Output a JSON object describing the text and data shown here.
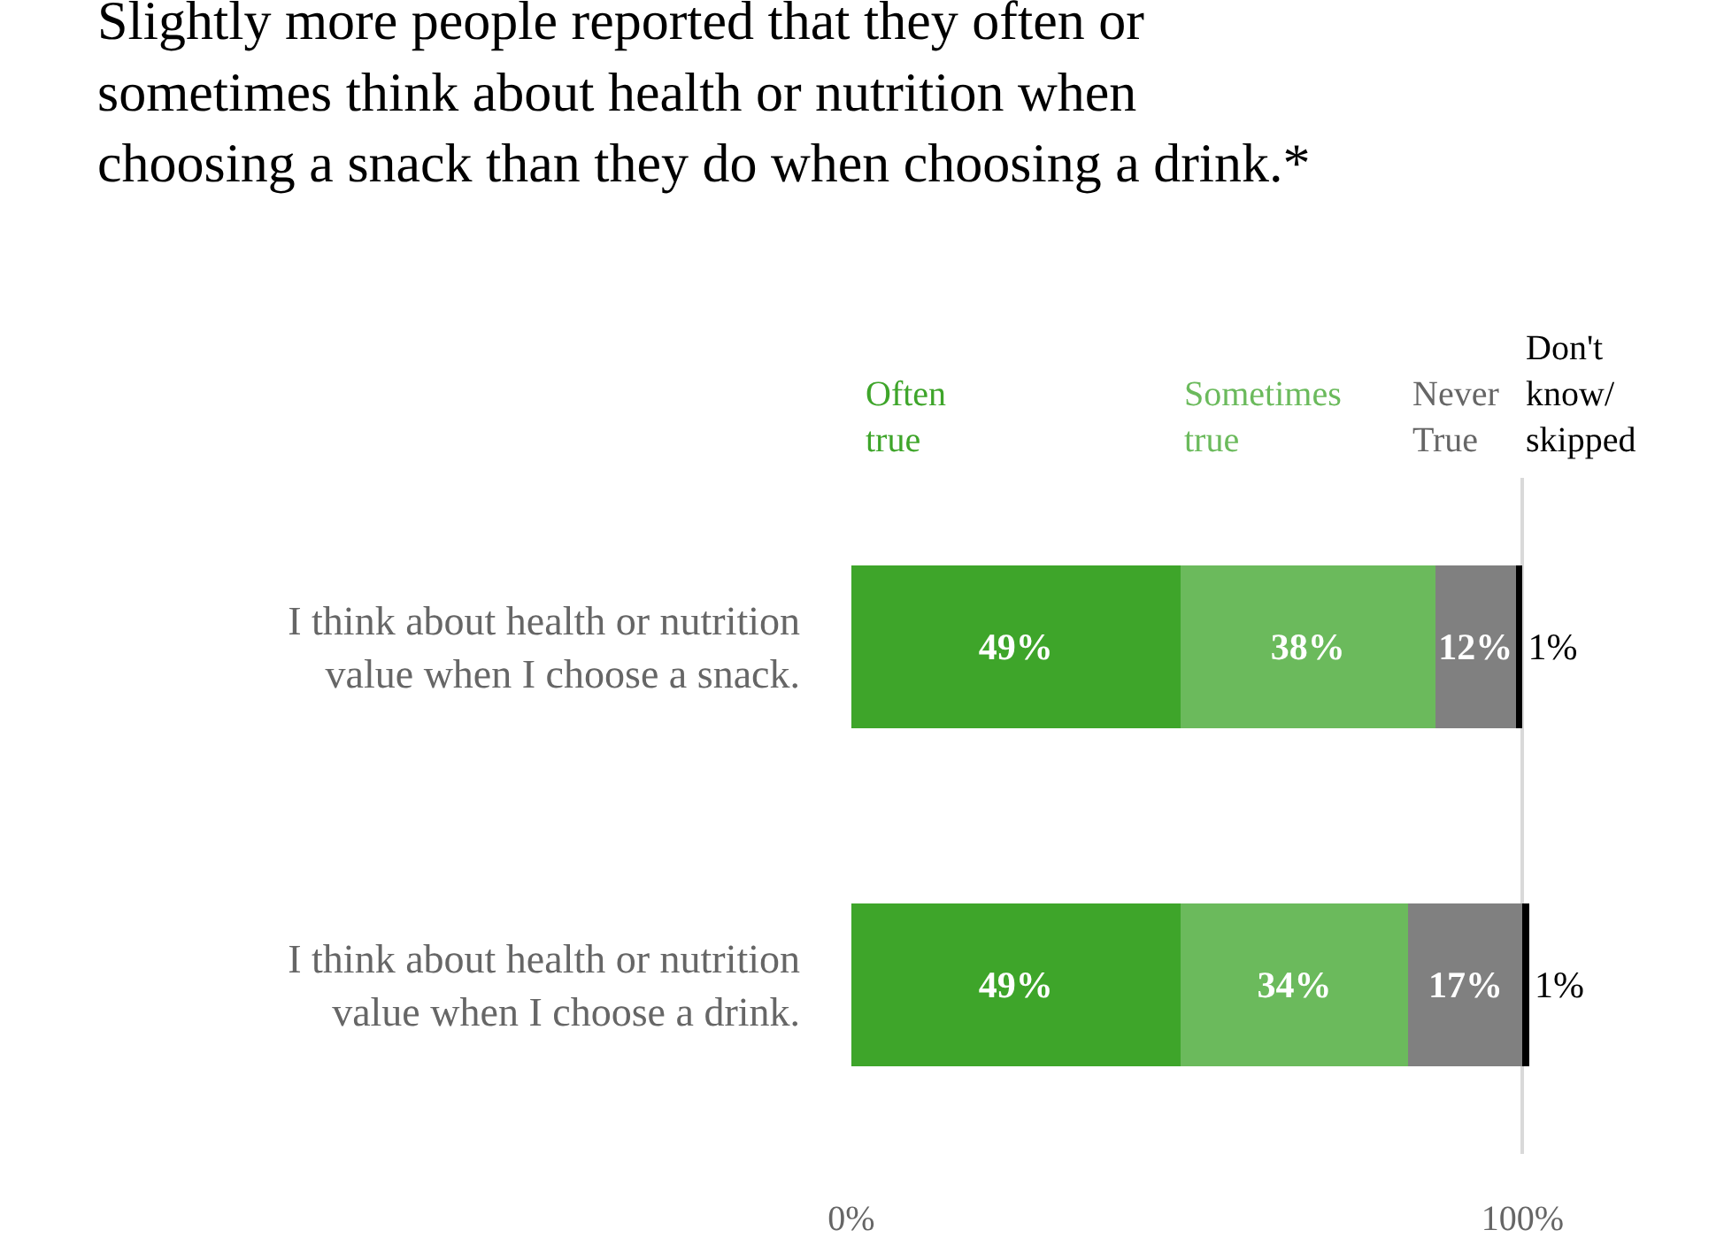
{
  "chart_data": {
    "type": "bar",
    "orientation": "horizontal",
    "stacked": true,
    "title": "Slightly more people reported that they often or sometimes think about health or nutrition when choosing a snack than they do when choosing a drink.*",
    "categories": [
      "I think about health or nutrition value when I choose a snack.",
      "I think about health or nutrition value when I choose a drink."
    ],
    "series": [
      {
        "name": "Often true",
        "color": "#3ea52a",
        "values": [
          49,
          49
        ],
        "value_labels": [
          "49%",
          "49%"
        ]
      },
      {
        "name": "Sometimes true",
        "color": "#6bba5c",
        "values": [
          38,
          34
        ],
        "value_labels": [
          "38%",
          "34%"
        ]
      },
      {
        "name": "Never True",
        "color": "#808080",
        "values": [
          12,
          17
        ],
        "value_labels": [
          "12%",
          "17%"
        ]
      },
      {
        "name": "Don't know/ skipped",
        "color": "#000000",
        "values": [
          1,
          1
        ],
        "value_labels": [
          "1%",
          "1%"
        ]
      }
    ],
    "xlim": [
      0,
      101
    ],
    "xticks": [
      {
        "value": 0,
        "label": "0%"
      },
      {
        "value": 100,
        "label": "100%"
      }
    ],
    "grid": "x",
    "legend": false
  }
}
